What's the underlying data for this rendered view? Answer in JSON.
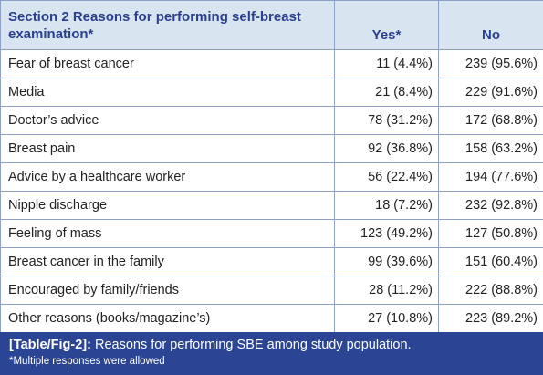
{
  "table": {
    "headers": {
      "label": "Section 2 Reasons for performing self-breast examination*",
      "yes": "Yes*",
      "no": "No"
    },
    "rows": [
      {
        "reason": "Fear of breast cancer",
        "yes": "11 (4.4%)",
        "no": "239 (95.6%)"
      },
      {
        "reason": "Media",
        "yes": "21 (8.4%)",
        "no": "229 (91.6%)"
      },
      {
        "reason": "Doctor’s advice",
        "yes": "78 (31.2%)",
        "no": "172 (68.8%)"
      },
      {
        "reason": "Breast pain",
        "yes": "92 (36.8%)",
        "no": "158 (63.2%)"
      },
      {
        "reason": "Advice by a healthcare worker",
        "yes": "56 (22.4%)",
        "no": "194 (77.6%)"
      },
      {
        "reason": "Nipple discharge",
        "yes": "18 (7.2%)",
        "no": "232 (92.8%)"
      },
      {
        "reason": "Feeling of mass",
        "yes": "123 (49.2%)",
        "no": "127 (50.8%)"
      },
      {
        "reason": "Breast cancer in the family",
        "yes": "99 (39.6%)",
        "no": "151 (60.4%)"
      },
      {
        "reason": "Encouraged by family/friends",
        "yes": "28 (11.2%)",
        "no": "222 (88.8%)"
      },
      {
        "reason": "Other reasons (books/magazine’s)",
        "yes": "27 (10.8%)",
        "no": "223 (89.2%)"
      }
    ]
  },
  "caption": {
    "tag": "[Table/Fig-2]:",
    "text": " Reasons for performing SBE among study population.",
    "footnote": "*Multiple responses were allowed"
  },
  "colors": {
    "header_bg": "#d9e4f1",
    "header_text": "#2a3f8f",
    "border": "#8ea0c4",
    "caption_bg": "#2b4594"
  }
}
